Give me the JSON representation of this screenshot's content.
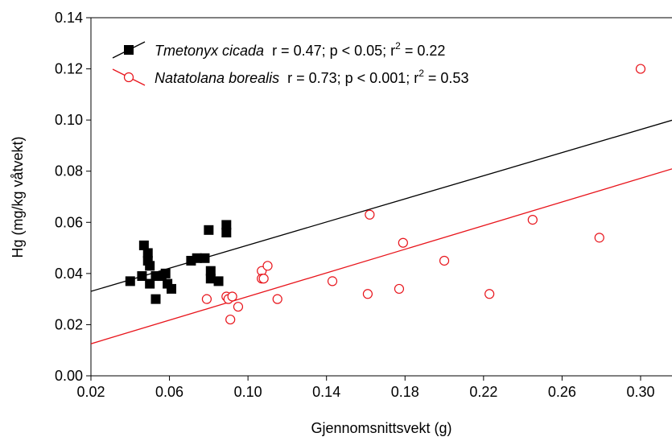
{
  "chart_data": {
    "type": "scatter",
    "x_label": "Gjennomsnittsvekt (g)",
    "y_label": "Hg (mg/kg våtvekt)",
    "xlim": [
      0.02,
      0.316
    ],
    "ylim": [
      0,
      0.14
    ],
    "xticks": [
      0.02,
      0.06,
      {
        "value": 0.1,
        "label": "0.10"
      },
      0.14,
      0.18,
      0.22,
      0.26,
      {
        "value": 0.3,
        "label": "0.30"
      }
    ],
    "yticks": [
      {
        "value": 0,
        "label": "0.00"
      },
      0.02,
      0.04,
      0.06,
      0.08,
      {
        "value": 0.1,
        "label": "0.10"
      },
      0.12,
      0.14
    ],
    "series": [
      {
        "name": "Tmetonyx cicada",
        "stats": [
          "r = 0.47; p < 0.05; r",
          "2",
          " = 0.22"
        ],
        "color": "#000000",
        "marker": "square",
        "fit": {
          "slope": 0.226,
          "intercept": 0.0285
        },
        "x": [
          0.04,
          0.046,
          0.047,
          0.049,
          0.049,
          0.05,
          0.05,
          0.053,
          0.053,
          0.056,
          0.058,
          0.059,
          0.061,
          0.071,
          0.074,
          0.078,
          0.08,
          0.081,
          0.081,
          0.085,
          0.089,
          0.089
        ],
        "values": [
          0.037,
          0.039,
          0.051,
          0.048,
          0.045,
          0.043,
          0.036,
          0.03,
          0.039,
          0.039,
          0.04,
          0.036,
          0.034,
          0.045,
          0.046,
          0.046,
          0.057,
          0.038,
          0.041,
          0.037,
          0.059,
          0.056
        ]
      },
      {
        "name": "Natatolana borealis",
        "stats": [
          "r = 0.73; p < 0.001; r",
          "2",
          " = 0.53"
        ],
        "color": "#e8141b",
        "marker": "circle",
        "fit": {
          "slope": 0.231,
          "intercept": 0.0079
        },
        "x": [
          0.079,
          0.089,
          0.09,
          0.091,
          0.092,
          0.095,
          0.107,
          0.107,
          0.108,
          0.11,
          0.115,
          0.143,
          0.161,
          0.162,
          0.177,
          0.179,
          0.2,
          0.223,
          0.245,
          0.279,
          0.3
        ],
        "values": [
          0.03,
          0.031,
          0.03,
          0.022,
          0.031,
          0.027,
          0.041,
          0.038,
          0.038,
          0.043,
          0.03,
          0.037,
          0.032,
          0.063,
          0.034,
          0.052,
          0.045,
          0.032,
          0.061,
          0.054,
          0.12
        ]
      }
    ]
  }
}
